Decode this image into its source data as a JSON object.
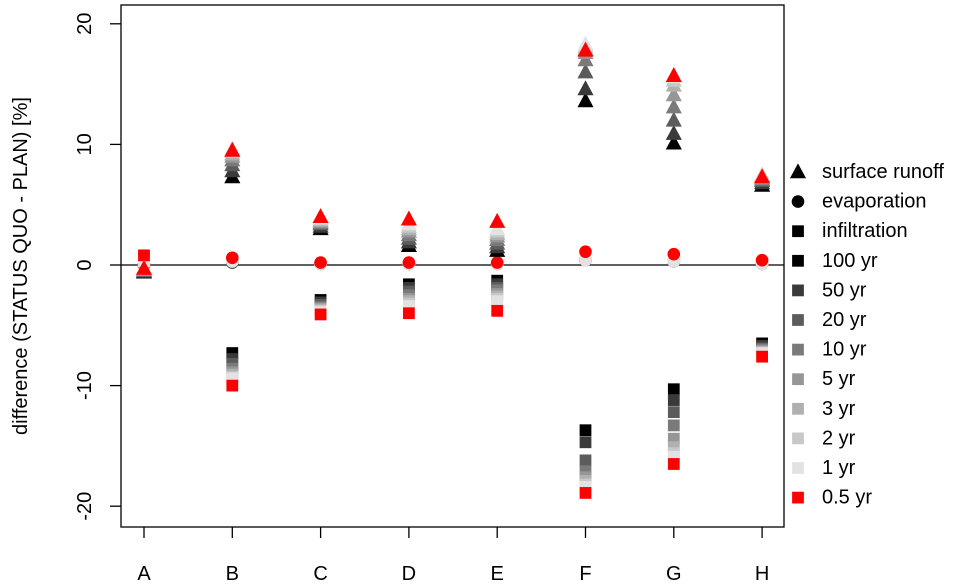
{
  "chart_data": {
    "type": "scatter",
    "title": "",
    "xlabel": "",
    "ylabel": "difference (STATUS QUO - PLAN) [%]",
    "ylim": [
      -21.5,
      20.2
    ],
    "yticks": [
      -20,
      -10,
      0,
      10,
      20
    ],
    "categories": [
      "A",
      "B",
      "C",
      "D",
      "E",
      "F",
      "G",
      "H"
    ],
    "zero_line": true,
    "grid": false,
    "legend_position": "right",
    "return_periods": [
      {
        "label": "100 yr",
        "color": "#000000"
      },
      {
        "label": "50 yr",
        "color": "#3a3a3a"
      },
      {
        "label": "20 yr",
        "color": "#5c5c5c"
      },
      {
        "label": "10 yr",
        "color": "#7a7a7a"
      },
      {
        "label": "5 yr",
        "color": "#969696"
      },
      {
        "label": "3 yr",
        "color": "#b0b0b0"
      },
      {
        "label": "2 yr",
        "color": "#c8c8c8"
      },
      {
        "label": "1 yr",
        "color": "#e2e2e2"
      },
      {
        "label": "0.5 yr",
        "color": "#ff0000"
      }
    ],
    "components": [
      {
        "label": "surface runoff",
        "marker": "triangle"
      },
      {
        "label": "evaporation",
        "marker": "circle"
      },
      {
        "label": "infiltration",
        "marker": "square"
      }
    ],
    "series": [
      {
        "component": "surface runoff",
        "marker": "triangle",
        "values": [
          [
            -0.6,
            -0.5,
            -0.5,
            -0.4,
            -0.4,
            -0.3,
            -0.3,
            -0.3,
            -0.3
          ],
          [
            7.3,
            7.8,
            8.3,
            8.7,
            9.0,
            9.2,
            9.4,
            9.6,
            9.5
          ],
          [
            3.0,
            3.2,
            3.4,
            3.5,
            3.6,
            3.7,
            3.8,
            3.9,
            4.0
          ],
          [
            1.6,
            1.9,
            2.2,
            2.5,
            2.8,
            3.0,
            3.2,
            3.4,
            3.8
          ],
          [
            1.2,
            1.5,
            1.8,
            2.1,
            2.4,
            2.6,
            2.8,
            3.0,
            3.6
          ],
          [
            13.6,
            14.6,
            16.0,
            17.0,
            17.6,
            17.9,
            18.1,
            18.3,
            17.8
          ],
          [
            10.1,
            10.9,
            12.0,
            13.1,
            14.1,
            14.9,
            15.3,
            15.6,
            15.7
          ],
          [
            6.6,
            6.8,
            7.0,
            7.1,
            7.2,
            7.3,
            7.4,
            7.5,
            7.3
          ]
        ]
      },
      {
        "component": "evaporation",
        "marker": "circle",
        "values": [
          [
            0.0,
            0.0,
            0.0,
            0.0,
            0.0,
            0.0,
            0.0,
            0.0,
            0.0
          ],
          [
            0.2,
            0.2,
            0.2,
            0.3,
            0.3,
            0.3,
            0.3,
            0.3,
            0.6
          ],
          [
            0.1,
            0.1,
            0.1,
            0.1,
            0.1,
            0.1,
            0.1,
            0.1,
            0.2
          ],
          [
            0.1,
            0.1,
            0.1,
            0.1,
            0.1,
            0.1,
            0.1,
            0.1,
            0.2
          ],
          [
            0.1,
            0.1,
            0.1,
            0.1,
            0.1,
            0.1,
            0.1,
            0.1,
            0.2
          ],
          [
            0.4,
            0.4,
            0.4,
            0.4,
            0.4,
            0.4,
            0.4,
            0.4,
            1.1
          ],
          [
            0.3,
            0.3,
            0.3,
            0.3,
            0.3,
            0.3,
            0.3,
            0.3,
            0.9
          ],
          [
            0.1,
            0.1,
            0.1,
            0.1,
            0.1,
            0.1,
            0.1,
            0.1,
            0.4
          ]
        ]
      },
      {
        "component": "infiltration",
        "marker": "square",
        "values": [
          [
            0.5,
            0.5,
            0.4,
            0.4,
            0.4,
            0.3,
            0.3,
            0.3,
            0.8
          ],
          [
            -7.3,
            -7.8,
            -8.2,
            -8.6,
            -8.9,
            -9.1,
            -9.3,
            -9.4,
            -10.0
          ],
          [
            -2.9,
            -3.1,
            -3.3,
            -3.5,
            -3.6,
            -3.7,
            -3.8,
            -3.9,
            -4.1
          ],
          [
            -1.6,
            -1.9,
            -2.2,
            -2.5,
            -2.8,
            -3.0,
            -3.2,
            -3.4,
            -4.0
          ],
          [
            -1.3,
            -1.6,
            -1.9,
            -2.1,
            -2.4,
            -2.6,
            -2.8,
            -3.0,
            -3.8
          ],
          [
            -13.7,
            -14.7,
            -16.2,
            -17.1,
            -17.6,
            -17.9,
            -18.2,
            -18.4,
            -18.9
          ],
          [
            -10.3,
            -11.2,
            -12.2,
            -13.3,
            -14.4,
            -15.1,
            -15.6,
            -15.9,
            -16.5
          ],
          [
            -6.5,
            -6.7,
            -6.9,
            -7.0,
            -7.1,
            -7.2,
            -7.3,
            -7.3,
            -7.6
          ]
        ]
      }
    ]
  }
}
